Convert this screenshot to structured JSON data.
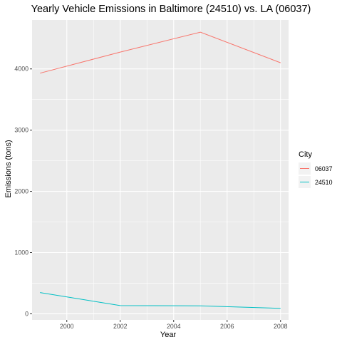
{
  "chart_data": {
    "type": "line",
    "title": "Yearly Vehicle Emissions in Baltimore (24510) vs. LA (06037)",
    "xlabel": "Year",
    "ylabel": "Emissions (tons)",
    "x": [
      1999,
      2002,
      2005,
      2008
    ],
    "x_ticks": [
      2000,
      2002,
      2004,
      2006,
      2008
    ],
    "x_tick_labels": [
      "2000",
      "2002",
      "2004",
      "2006",
      "2008"
    ],
    "y_ticks": [
      0,
      1000,
      2000,
      3000,
      4000
    ],
    "y_tick_labels": [
      "0",
      "1000",
      "2000",
      "3000",
      "4000"
    ],
    "xlim": [
      1998.7,
      2008.3
    ],
    "ylim": [
      -100,
      4800
    ],
    "grid": true,
    "legend_title": "City",
    "legend_position": "right",
    "series": [
      {
        "name": "06037",
        "color": "#F8766D",
        "values": [
          3931,
          4275,
          4601,
          4101
        ]
      },
      {
        "name": "24510",
        "color": "#00BFC4",
        "values": [
          347,
          134,
          130,
          88
        ]
      }
    ],
    "panel_background": "#EBEBEB",
    "grid_color": "#FFFFFF"
  }
}
